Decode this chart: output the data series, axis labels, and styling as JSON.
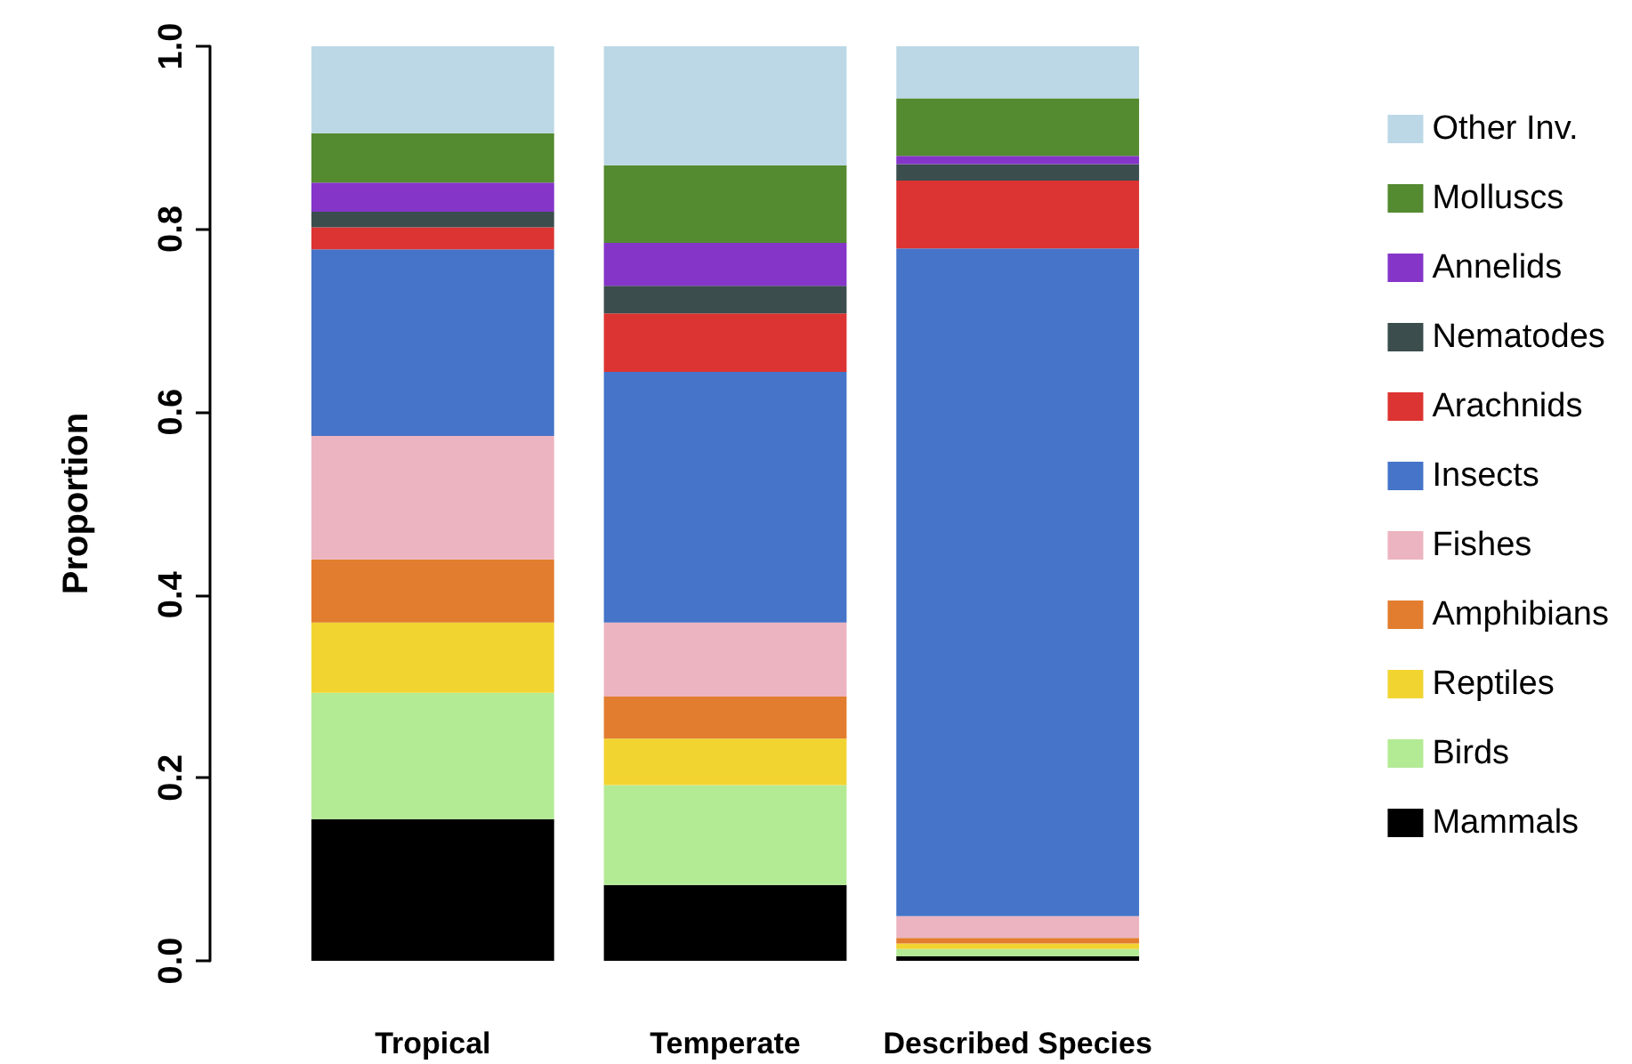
{
  "chart_data": {
    "type": "bar",
    "stacked": true,
    "ylabel": "Proportion",
    "categories": [
      "Tropical",
      "Temperate",
      "Described Species"
    ],
    "ylim": [
      0,
      1
    ],
    "yticks": [
      {
        "value": 0,
        "label": "0.0"
      },
      {
        "value": 0.2,
        "label": "0.2"
      },
      {
        "value": 0.4,
        "label": "0.4"
      },
      {
        "value": 0.6,
        "label": "0.6"
      },
      {
        "value": 0.8,
        "label": "0.8"
      },
      {
        "value": 1,
        "label": "1.0"
      }
    ],
    "grid": false,
    "legend": "right",
    "series": [
      {
        "name": "Mammals",
        "color": "#000000",
        "values": [
          0.155,
          0.083,
          0.005
        ]
      },
      {
        "name": "Birds",
        "color": "#b3eb95",
        "values": [
          0.138,
          0.109,
          0.008
        ]
      },
      {
        "name": "Reptiles",
        "color": "#f2d431",
        "values": [
          0.077,
          0.051,
          0.006
        ]
      },
      {
        "name": "Amphibians",
        "color": "#e27d2f",
        "values": [
          0.069,
          0.046,
          0.006
        ]
      },
      {
        "name": "Fishes",
        "color": "#ecb4c0",
        "values": [
          0.135,
          0.081,
          0.024
        ]
      },
      {
        "name": "Insects",
        "color": "#4574c8",
        "values": [
          0.204,
          0.274,
          0.73
        ]
      },
      {
        "name": "Arachnids",
        "color": "#dc3432",
        "values": [
          0.024,
          0.064,
          0.074
        ]
      },
      {
        "name": "Nematodes",
        "color": "#3b4d4d",
        "values": [
          0.017,
          0.03,
          0.018
        ]
      },
      {
        "name": "Annelids",
        "color": "#8535c8",
        "values": [
          0.032,
          0.047,
          0.009
        ]
      },
      {
        "name": "Molluscs",
        "color": "#548a30",
        "values": [
          0.054,
          0.085,
          0.063
        ]
      },
      {
        "name": "Other Inv.",
        "color": "#bcd8e6",
        "values": [
          0.095,
          0.13,
          0.057
        ]
      }
    ]
  }
}
